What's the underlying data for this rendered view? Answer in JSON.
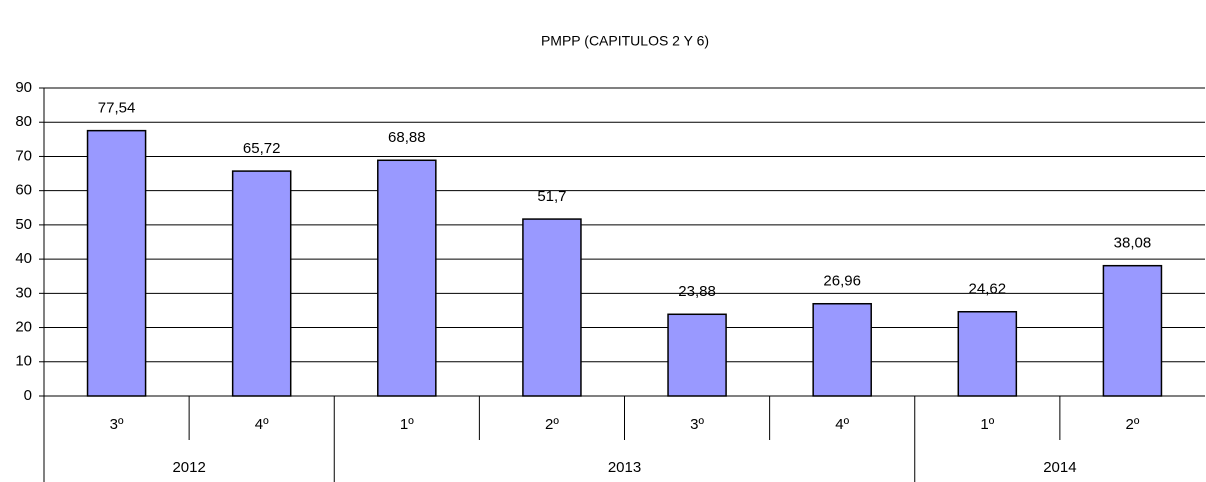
{
  "chart_data": {
    "type": "bar",
    "title": "PMPP (CAPITULOS 2 Y 6)",
    "categories": [
      "3º",
      "4º",
      "1º",
      "2º",
      "3º",
      "4º",
      "1º",
      "2º"
    ],
    "values": [
      77.54,
      65.72,
      68.88,
      51.7,
      23.88,
      26.96,
      24.62,
      38.08
    ],
    "value_labels": [
      "77,54",
      "65,72",
      "68,88",
      "51,7",
      "23,88",
      "26,96",
      "24,62",
      "38,08"
    ],
    "groups": [
      {
        "label": "2012",
        "span": 2
      },
      {
        "label": "2013",
        "span": 4
      },
      {
        "label": "2014",
        "span": 2
      }
    ],
    "color": "#9999ff",
    "ylim": [
      0,
      90
    ],
    "yticks": [
      0,
      10,
      20,
      30,
      40,
      50,
      60,
      70,
      80,
      90
    ],
    "grid": true
  }
}
